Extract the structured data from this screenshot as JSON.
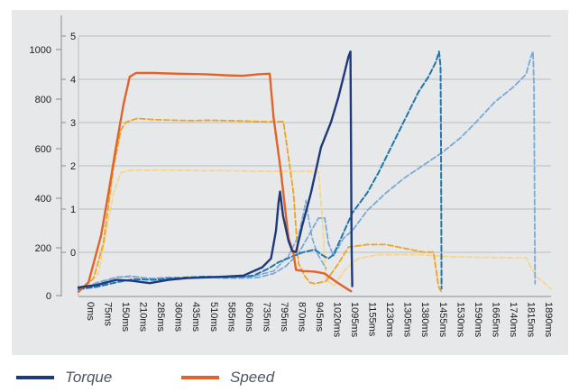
{
  "chart_data": {
    "type": "line",
    "title": "",
    "xlabel": "",
    "ylabel_left": "",
    "ylabel_right": "",
    "x_ticks": [
      "0ms",
      "75ms",
      "150ms",
      "210ms",
      "285ms",
      "360ms",
      "435ms",
      "510ms",
      "585ms",
      "660ms",
      "735ms",
      "795ms",
      "870ms",
      "945ms",
      "1020ms",
      "1095ms",
      "1155ms",
      "1230ms",
      "1305ms",
      "1380ms",
      "1455ms",
      "1530ms",
      "1590ms",
      "1665ms",
      "1740ms",
      "1815ms",
      "1890ms"
    ],
    "xlim": [
      0,
      1890
    ],
    "y_left": {
      "ticks": [
        "0",
        "200",
        "400",
        "600",
        "800",
        "1000"
      ],
      "ylim": [
        0,
        1050
      ]
    },
    "y_right": {
      "ticks": [
        "0",
        "1",
        "2",
        "3",
        "4",
        "5"
      ],
      "values": [
        0,
        1,
        2,
        3,
        4,
        5
      ]
    },
    "grid": true,
    "series": [
      {
        "name": "Torque",
        "color": "#1f3a7a",
        "dash": "solid",
        "width": 2.4,
        "points": [
          [
            0,
            25
          ],
          [
            75,
            35
          ],
          [
            150,
            55
          ],
          [
            210,
            52
          ],
          [
            285,
            42
          ],
          [
            360,
            55
          ],
          [
            435,
            62
          ],
          [
            510,
            65
          ],
          [
            585,
            68
          ],
          [
            660,
            72
          ],
          [
            735,
            105
          ],
          [
            770,
            140
          ],
          [
            790,
            250
          ],
          [
            800,
            360
          ],
          [
            806,
            405
          ],
          [
            818,
            310
          ],
          [
            840,
            210
          ],
          [
            855,
            170
          ],
          [
            870,
            165
          ],
          [
            895,
            270
          ],
          [
            930,
            400
          ],
          [
            970,
            580
          ],
          [
            1010,
            680
          ],
          [
            1040,
            780
          ],
          [
            1060,
            860
          ],
          [
            1080,
            940
          ],
          [
            1088,
            960
          ],
          [
            1090,
            600
          ],
          [
            1092,
            200
          ],
          [
            1095,
            30
          ]
        ]
      },
      {
        "name": "Speed",
        "color": "#e0642a",
        "dash": "solid",
        "width": 2.4,
        "points": [
          [
            0,
            8
          ],
          [
            40,
            45
          ],
          [
            90,
            230
          ],
          [
            120,
            400
          ],
          [
            150,
            580
          ],
          [
            180,
            750
          ],
          [
            205,
            860
          ],
          [
            230,
            875
          ],
          [
            300,
            875
          ],
          [
            400,
            872
          ],
          [
            510,
            870
          ],
          [
            585,
            866
          ],
          [
            660,
            864
          ],
          [
            720,
            870
          ],
          [
            765,
            872
          ],
          [
            780,
            700
          ],
          [
            810,
            480
          ],
          [
            840,
            220
          ],
          [
            860,
            160
          ],
          [
            870,
            95
          ],
          [
            900,
            90
          ],
          [
            945,
            88
          ],
          [
            985,
            80
          ],
          [
            1020,
            55
          ],
          [
            1050,
            35
          ],
          [
            1090,
            10
          ]
        ]
      },
      {
        "name": "",
        "color": "#f2a21e",
        "dash": "6,3",
        "width": 1.8,
        "points": [
          [
            0,
            10
          ],
          [
            60,
            60
          ],
          [
            100,
            200
          ],
          [
            140,
            500
          ],
          [
            170,
            650
          ],
          [
            190,
            680
          ],
          [
            235,
            695
          ],
          [
            300,
            690
          ],
          [
            380,
            688
          ],
          [
            450,
            686
          ],
          [
            520,
            688
          ],
          [
            600,
            686
          ],
          [
            680,
            684
          ],
          [
            740,
            682
          ],
          [
            820,
            682
          ],
          [
            860,
            400
          ],
          [
            880,
            120
          ],
          [
            905,
            70
          ],
          [
            925,
            45
          ],
          [
            945,
            40
          ],
          [
            990,
            50
          ],
          [
            1040,
            120
          ],
          [
            1080,
            185
          ],
          [
            1155,
            195
          ],
          [
            1230,
            195
          ],
          [
            1305,
            180
          ],
          [
            1380,
            165
          ],
          [
            1420,
            165
          ],
          [
            1440,
            30
          ],
          [
            1450,
            10
          ]
        ]
      },
      {
        "name": "",
        "color": "#f7d582",
        "dash": "6,3",
        "width": 1.6,
        "points": [
          [
            0,
            10
          ],
          [
            80,
            80
          ],
          [
            140,
            400
          ],
          [
            170,
            480
          ],
          [
            210,
            490
          ],
          [
            300,
            490
          ],
          [
            400,
            490
          ],
          [
            500,
            488
          ],
          [
            600,
            488
          ],
          [
            700,
            486
          ],
          [
            800,
            486
          ],
          [
            900,
            486
          ],
          [
            960,
            482
          ],
          [
            975,
            300
          ],
          [
            990,
            60
          ],
          [
            1020,
            30
          ],
          [
            1070,
            100
          ],
          [
            1120,
            140
          ],
          [
            1200,
            155
          ],
          [
            1305,
            155
          ],
          [
            1380,
            155
          ],
          [
            1455,
            148
          ],
          [
            1530,
            146
          ],
          [
            1590,
            145
          ],
          [
            1665,
            144
          ],
          [
            1740,
            143
          ],
          [
            1790,
            143
          ],
          [
            1830,
            70
          ],
          [
            1890,
            20
          ]
        ]
      },
      {
        "name": "",
        "color": "#2277a8",
        "dash": "6,3",
        "width": 2,
        "points": [
          [
            0,
            18
          ],
          [
            75,
            28
          ],
          [
            150,
            45
          ],
          [
            220,
            58
          ],
          [
            300,
            55
          ],
          [
            360,
            60
          ],
          [
            435,
            65
          ],
          [
            510,
            68
          ],
          [
            585,
            65
          ],
          [
            660,
            68
          ],
          [
            700,
            72
          ],
          [
            760,
            100
          ],
          [
            800,
            125
          ],
          [
            860,
            150
          ],
          [
            900,
            165
          ],
          [
            945,
            175
          ],
          [
            980,
            150
          ],
          [
            1000,
            140
          ],
          [
            1020,
            155
          ],
          [
            1050,
            220
          ],
          [
            1095,
            320
          ],
          [
            1155,
            400
          ],
          [
            1200,
            480
          ],
          [
            1240,
            560
          ],
          [
            1280,
            640
          ],
          [
            1320,
            720
          ],
          [
            1360,
            800
          ],
          [
            1400,
            860
          ],
          [
            1430,
            920
          ],
          [
            1442,
            960
          ],
          [
            1448,
            900
          ],
          [
            1450,
            600
          ],
          [
            1452,
            20
          ]
        ]
      },
      {
        "name": "",
        "color": "#7aa9d8",
        "dash": "6,3",
        "width": 1.8,
        "points": [
          [
            0,
            18
          ],
          [
            75,
            40
          ],
          [
            150,
            65
          ],
          [
            210,
            70
          ],
          [
            285,
            60
          ],
          [
            360,
            65
          ],
          [
            435,
            62
          ],
          [
            510,
            65
          ],
          [
            585,
            62
          ],
          [
            660,
            62
          ],
          [
            720,
            65
          ],
          [
            780,
            80
          ],
          [
            830,
            110
          ],
          [
            880,
            160
          ],
          [
            920,
            230
          ],
          [
            960,
            300
          ],
          [
            985,
            300
          ],
          [
            1000,
            200
          ],
          [
            1020,
            150
          ],
          [
            1060,
            220
          ],
          [
            1095,
            250
          ],
          [
            1155,
            330
          ],
          [
            1230,
            400
          ],
          [
            1305,
            460
          ],
          [
            1380,
            510
          ],
          [
            1455,
            560
          ],
          [
            1530,
            620
          ],
          [
            1590,
            680
          ],
          [
            1665,
            760
          ],
          [
            1740,
            820
          ],
          [
            1790,
            870
          ],
          [
            1810,
            940
          ],
          [
            1818,
            960
          ],
          [
            1822,
            820
          ],
          [
            1826,
            40
          ]
        ]
      },
      {
        "name": "",
        "color": "#7aa9d8",
        "dash": "6,3",
        "width": 1.6,
        "points": [
          [
            0,
            12
          ],
          [
            75,
            45
          ],
          [
            150,
            65
          ],
          [
            210,
            68
          ],
          [
            300,
            60
          ],
          [
            400,
            62
          ],
          [
            500,
            65
          ],
          [
            600,
            65
          ],
          [
            700,
            70
          ],
          [
            780,
            90
          ],
          [
            840,
            150
          ],
          [
            880,
            230
          ],
          [
            900,
            320
          ],
          [
            910,
            370
          ],
          [
            920,
            300
          ],
          [
            935,
            220
          ],
          [
            955,
            160
          ],
          [
            990,
            100
          ]
        ]
      }
    ]
  },
  "legend": {
    "torque_label": "Torque",
    "speed_label": "Speed",
    "torque_color": "#1f3a7a",
    "speed_color": "#e0642a"
  }
}
